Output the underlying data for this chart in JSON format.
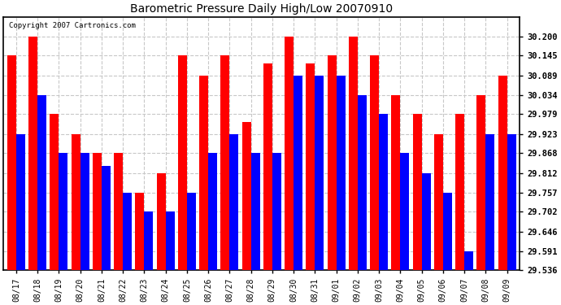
{
  "title": "Barometric Pressure Daily High/Low 20070910",
  "copyright": "Copyright 2007 Cartronics.com",
  "dates": [
    "08/17",
    "08/18",
    "08/19",
    "08/20",
    "08/21",
    "08/22",
    "08/23",
    "08/24",
    "08/25",
    "08/26",
    "08/27",
    "08/28",
    "08/29",
    "08/30",
    "08/31",
    "09/01",
    "09/02",
    "09/03",
    "09/04",
    "09/05",
    "09/06",
    "09/07",
    "09/08",
    "09/09"
  ],
  "highs": [
    30.145,
    30.2,
    29.979,
    29.923,
    29.868,
    29.868,
    29.757,
    29.812,
    30.145,
    30.089,
    30.145,
    29.957,
    30.123,
    30.2,
    30.123,
    30.145,
    30.2,
    30.145,
    30.034,
    29.979,
    29.923,
    29.979,
    30.034,
    30.089
  ],
  "lows": [
    29.923,
    30.034,
    29.868,
    29.868,
    29.833,
    29.757,
    29.702,
    29.702,
    29.757,
    29.868,
    29.923,
    29.868,
    29.868,
    30.089,
    30.089,
    30.089,
    30.034,
    29.979,
    29.868,
    29.812,
    29.757,
    29.591,
    29.923,
    29.923
  ],
  "high_color": "#ff0000",
  "low_color": "#0000ff",
  "bg_color": "#ffffff",
  "grid_color": "#c8c8c8",
  "yticks": [
    29.536,
    29.591,
    29.646,
    29.702,
    29.757,
    29.812,
    29.868,
    29.923,
    29.979,
    30.034,
    30.089,
    30.145,
    30.2
  ],
  "ymin": 29.536,
  "ymax": 30.255,
  "bar_width": 0.42
}
